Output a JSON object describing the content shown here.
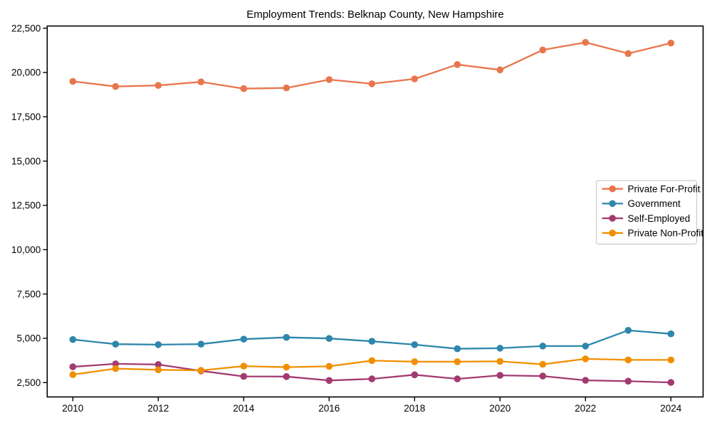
{
  "title": "Employment Trends: Belknap County, New Hampshire",
  "colors": {
    "background": "#ffffff",
    "axis": "#000000",
    "text": "#000000",
    "legend_border": "#cccccc",
    "private_for_profit": "#e8764d",
    "government": "#2e86ab",
    "self_employed": "#a23b72",
    "private_non_profit": "#f18f01"
  },
  "chart_data": {
    "type": "line",
    "title": "Employment Trends: Belknap County, New Hampshire",
    "xlabel": "",
    "ylabel": "",
    "grid": false,
    "legend_position": "center-right",
    "x": [
      2010,
      2011,
      2012,
      2013,
      2014,
      2015,
      2016,
      2017,
      2018,
      2019,
      2020,
      2021,
      2022,
      2023,
      2024
    ],
    "xticks": [
      2010,
      2012,
      2014,
      2016,
      2018,
      2020,
      2022,
      2024
    ],
    "yticks": [
      2500,
      5000,
      7500,
      10000,
      12500,
      15000,
      17500,
      20000,
      22500
    ],
    "ytick_labels": [
      "2,500",
      "5,000",
      "7,500",
      "10,000",
      "12,500",
      "15,000",
      "17,500",
      "20,000",
      "22,500"
    ],
    "xlim": [
      2009.4,
      2024.75
    ],
    "ylim": [
      1700,
      22600
    ],
    "series": [
      {
        "name": "Private For-Profit",
        "color": "#e8764d",
        "values": [
          19500,
          19210,
          19270,
          19470,
          19090,
          19130,
          19600,
          19360,
          19640,
          20450,
          20150,
          21270,
          21700,
          21070,
          21660
        ]
      },
      {
        "name": "Government",
        "color": "#2e86ab",
        "values": [
          4930,
          4670,
          4640,
          4670,
          4950,
          5050,
          4990,
          4830,
          4640,
          4410,
          4440,
          4560,
          4560,
          5450,
          5250
        ]
      },
      {
        "name": "Self-Employed",
        "color": "#a23b72",
        "values": [
          3390,
          3560,
          3520,
          3160,
          2850,
          2840,
          2620,
          2710,
          2940,
          2710,
          2910,
          2870,
          2630,
          2580,
          2510
        ]
      },
      {
        "name": "Private Non-Profit",
        "color": "#f18f01",
        "values": [
          2950,
          3290,
          3220,
          3190,
          3430,
          3370,
          3420,
          3740,
          3680,
          3680,
          3700,
          3530,
          3840,
          3780,
          3780
        ]
      }
    ]
  }
}
